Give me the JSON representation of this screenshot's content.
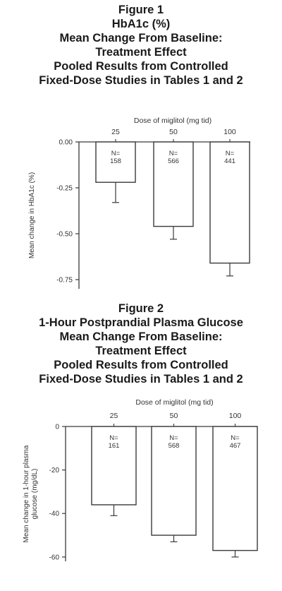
{
  "figure1": {
    "title_lines": [
      "Figure 1",
      "HbA1c (%)",
      "Mean Change From Baseline:",
      "Treatment Effect",
      "Pooled Results from Controlled",
      "Fixed-Dose Studies in Tables 1 and 2"
    ]
  },
  "figure2": {
    "title_lines": [
      "Figure 2",
      "1-Hour Postprandial Plasma Glucose",
      "Mean Change From Baseline:",
      "Treatment Effect",
      "Pooled Results from Controlled",
      "Fixed-Dose Studies in Tables 1 and 2"
    ]
  },
  "chart_data": [
    {
      "type": "bar",
      "title": "HbA1c (%)",
      "xlabel": "Dose of miglitol (mg tid)",
      "ylabel": "Mean change in HbA1c (%)",
      "categories": [
        "25",
        "50",
        "100"
      ],
      "values": [
        -0.22,
        -0.46,
        -0.66
      ],
      "error_bars": [
        0.11,
        0.07,
        0.07
      ],
      "n_prefix": "N=",
      "n_values": [
        "158",
        "566",
        "441"
      ],
      "ylim": [
        -0.8,
        0
      ],
      "yticks": [
        0,
        -0.25,
        -0.5,
        -0.75
      ],
      "ytick_labels": [
        "0.00",
        "-0.25",
        "-0.50",
        "-0.75"
      ],
      "x_axis_position": "top",
      "grid": false
    },
    {
      "type": "bar",
      "title": "1-Hour Postprandial Plasma Glucose",
      "xlabel": "Dose of miglitol (mg tid)",
      "ylabel_lines": [
        "Mean change in 1-hour plasma",
        "glucose (mg/dL)"
      ],
      "categories": [
        "25",
        "50",
        "100"
      ],
      "values": [
        -36,
        -50,
        -57
      ],
      "error_bars": [
        5,
        3,
        3
      ],
      "n_prefix": "N=",
      "n_values": [
        "161",
        "568",
        "467"
      ],
      "ylim": [
        -62,
        0
      ],
      "yticks": [
        0,
        -20,
        -40,
        -60
      ],
      "ytick_labels": [
        "0",
        "-20",
        "-40",
        "-60"
      ],
      "x_axis_position": "top",
      "grid": false
    }
  ]
}
